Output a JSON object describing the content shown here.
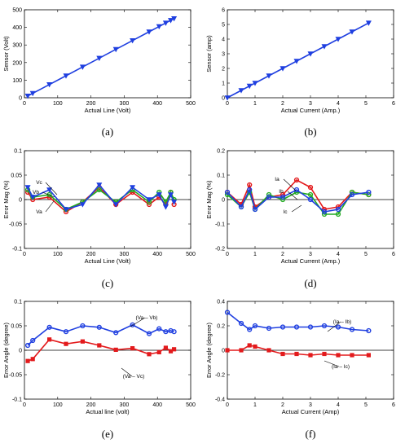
{
  "figure": {
    "captions": [
      "(a)",
      "(b)",
      "(c)",
      "(d)",
      "(e)",
      "(f)"
    ]
  },
  "chart_data": [
    {
      "id": "a",
      "type": "line",
      "xlabel": "Actual Line (Volt)",
      "ylabel": "Sensor (Volt)",
      "xlim": [
        0,
        500
      ],
      "ylim": [
        0,
        500
      ],
      "xticks": [
        0,
        100,
        200,
        300,
        400,
        500
      ],
      "yticks": [
        0,
        100,
        200,
        300,
        400,
        500
      ],
      "series": [
        {
          "color": "#1f3fe0",
          "marker": "triangle-down",
          "x": [
            10,
            25,
            75,
            125,
            175,
            225,
            275,
            325,
            375,
            405,
            425,
            440,
            450
          ],
          "y": [
            10,
            25,
            75,
            125,
            175,
            225,
            275,
            325,
            375,
            405,
            425,
            440,
            450
          ]
        }
      ]
    },
    {
      "id": "b",
      "type": "line",
      "xlabel": "Actual Current (Amp.)",
      "ylabel": "Sensor (amp)",
      "xlim": [
        0,
        6
      ],
      "ylim": [
        0,
        6
      ],
      "xticks": [
        0,
        1,
        2,
        3,
        4,
        5,
        6
      ],
      "yticks": [
        0,
        1,
        2,
        3,
        4,
        5,
        6
      ],
      "series": [
        {
          "color": "#1f3fe0",
          "marker": "triangle-down",
          "x": [
            0,
            0.5,
            0.8,
            1.0,
            1.5,
            2.0,
            2.5,
            3.0,
            3.5,
            4.0,
            4.5,
            5.1
          ],
          "y": [
            0,
            0.5,
            0.8,
            1.0,
            1.5,
            2.0,
            2.5,
            3.0,
            3.5,
            4.0,
            4.5,
            5.1
          ]
        }
      ]
    },
    {
      "id": "c",
      "type": "line",
      "xlabel": "Actual Line (Volt)",
      "ylabel": "Error Mag (%)",
      "xlim": [
        0,
        500
      ],
      "ylim": [
        -0.1,
        0.1
      ],
      "xticks": [
        0,
        100,
        200,
        300,
        400,
        500
      ],
      "yticks": [
        -0.1,
        -0.05,
        0,
        0.05,
        0.1
      ],
      "series": [
        {
          "name": "Va",
          "color": "#e31a1c",
          "marker": "circle",
          "x": [
            10,
            25,
            75,
            125,
            175,
            225,
            275,
            325,
            375,
            405,
            425,
            440,
            450
          ],
          "y": [
            0.015,
            0.0,
            0.005,
            -0.025,
            -0.005,
            0.025,
            -0.01,
            0.015,
            -0.01,
            0.005,
            -0.01,
            0.015,
            -0.01
          ]
        },
        {
          "name": "Vb",
          "color": "#22aa22",
          "marker": "circle",
          "x": [
            10,
            25,
            75,
            125,
            175,
            225,
            275,
            325,
            375,
            405,
            425,
            440,
            450
          ],
          "y": [
            0.02,
            0.005,
            0.01,
            -0.02,
            -0.005,
            0.02,
            -0.005,
            0.02,
            -0.005,
            0.015,
            -0.005,
            0.015,
            0.0
          ]
        },
        {
          "name": "Vc",
          "color": "#1f3fe0",
          "marker": "triangle-down",
          "x": [
            10,
            25,
            75,
            125,
            175,
            225,
            275,
            325,
            375,
            405,
            425,
            440,
            450
          ],
          "y": [
            0.025,
            0.005,
            0.02,
            -0.02,
            -0.01,
            0.03,
            -0.01,
            0.025,
            0.0,
            0.01,
            -0.015,
            0.01,
            -0.005
          ]
        }
      ],
      "annotations": [
        "Vc",
        "Vb",
        "Va"
      ]
    },
    {
      "id": "d",
      "type": "line",
      "xlabel": "Actual Current (Amp.)",
      "ylabel": "Error Mag (%)",
      "xlim": [
        0,
        6
      ],
      "ylim": [
        -0.2,
        0.2
      ],
      "xticks": [
        0,
        1,
        2,
        3,
        4,
        5,
        6
      ],
      "yticks": [
        -0.2,
        -0.1,
        0,
        0.1,
        0.2
      ],
      "series": [
        {
          "name": "Ia",
          "color": "#e31a1c",
          "marker": "circle",
          "x": [
            0,
            0.5,
            0.8,
            1.0,
            1.5,
            2.0,
            2.5,
            3.0,
            3.5,
            4.0,
            4.5,
            5.1
          ],
          "y": [
            0.03,
            -0.02,
            0.06,
            -0.03,
            0.01,
            0.02,
            0.08,
            0.05,
            -0.04,
            -0.03,
            0.03,
            0.02
          ]
        },
        {
          "name": "Ib",
          "color": "#22aa22",
          "marker": "circle",
          "x": [
            0,
            0.5,
            0.8,
            1.0,
            1.5,
            2.0,
            2.5,
            3.0,
            3.5,
            4.0,
            4.5,
            5.1
          ],
          "y": [
            0.02,
            -0.03,
            0.03,
            -0.04,
            0.02,
            0.0,
            0.03,
            0.02,
            -0.06,
            -0.06,
            0.03,
            0.02
          ]
        },
        {
          "name": "Ic",
          "color": "#1f3fe0",
          "marker": "circle",
          "x": [
            0,
            0.5,
            0.8,
            1.0,
            1.5,
            2.0,
            2.5,
            3.0,
            3.5,
            4.0,
            4.5,
            5.1
          ],
          "y": [
            0.03,
            -0.03,
            0.04,
            -0.04,
            0.01,
            0.01,
            0.04,
            0.0,
            -0.05,
            -0.04,
            0.02,
            0.03
          ]
        }
      ],
      "annotations": [
        "Ia",
        "Ib",
        "Ic"
      ]
    },
    {
      "id": "e",
      "type": "line",
      "xlabel": "Actual line (volt)",
      "ylabel": "Error Angle (degree)",
      "xlim": [
        0,
        500
      ],
      "ylim": [
        -0.1,
        0.1
      ],
      "xticks": [
        0,
        100,
        200,
        300,
        400,
        500
      ],
      "yticks": [
        -0.1,
        -0.05,
        0,
        0.05,
        0.1
      ],
      "series": [
        {
          "name": "(Va – Vb)",
          "color": "#1f3fe0",
          "marker": "circle",
          "x": [
            10,
            25,
            75,
            125,
            175,
            225,
            275,
            325,
            375,
            405,
            425,
            440,
            450
          ],
          "y": [
            0.01,
            0.02,
            0.047,
            0.038,
            0.05,
            0.047,
            0.036,
            0.052,
            0.034,
            0.044,
            0.038,
            0.04,
            0.038
          ]
        },
        {
          "name": "(Va – Vc)",
          "color": "#e31a1c",
          "marker": "square",
          "x": [
            10,
            25,
            75,
            125,
            175,
            225,
            275,
            325,
            375,
            405,
            425,
            440,
            450
          ],
          "y": [
            -0.022,
            -0.018,
            0.022,
            0.013,
            0.018,
            0.01,
            0.001,
            0.004,
            -0.008,
            -0.004,
            0.005,
            -0.002,
            0.002
          ]
        }
      ],
      "annotations": [
        "(Va – Vb)",
        "(Va – Vc)"
      ]
    },
    {
      "id": "f",
      "type": "line",
      "xlabel": "Actual Current (Amp)",
      "ylabel": "Error Angle (degree)",
      "xlim": [
        0,
        6
      ],
      "ylim": [
        -0.4,
        0.4
      ],
      "xticks": [
        0,
        1,
        2,
        3,
        4,
        5,
        6
      ],
      "yticks": [
        -0.4,
        -0.2,
        0,
        0.2,
        0.4
      ],
      "series": [
        {
          "name": "(Ia – Ib)",
          "color": "#1f3fe0",
          "marker": "circle",
          "x": [
            0,
            0.5,
            0.8,
            1.0,
            1.5,
            2.0,
            2.5,
            3.0,
            3.5,
            4.0,
            4.5,
            5.1
          ],
          "y": [
            0.31,
            0.22,
            0.17,
            0.2,
            0.18,
            0.19,
            0.19,
            0.19,
            0.2,
            0.19,
            0.17,
            0.16
          ]
        },
        {
          "name": "(Ia – Ic)",
          "color": "#e31a1c",
          "marker": "square",
          "x": [
            0,
            0.5,
            0.8,
            1.0,
            1.5,
            2.0,
            2.5,
            3.0,
            3.5,
            4.0,
            4.5,
            5.1
          ],
          "y": [
            0.0,
            0.0,
            0.04,
            0.03,
            0.0,
            -0.03,
            -0.03,
            -0.04,
            -0.03,
            -0.04,
            -0.04,
            -0.04
          ]
        }
      ],
      "annotations": [
        "(Ia – Ib)",
        "(Ia – Ic)"
      ]
    }
  ]
}
